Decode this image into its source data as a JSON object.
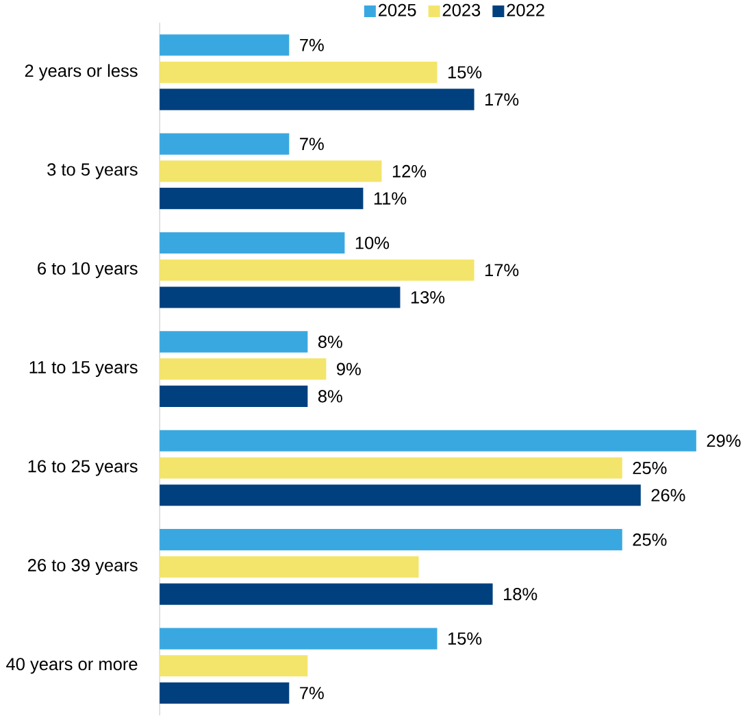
{
  "chart_data": {
    "type": "bar",
    "orientation": "horizontal",
    "legend": "top",
    "categories": [
      "2 years or less",
      "3 to 5 years",
      "6 to 10 years",
      "11 to 15 years",
      "16 to 25 years",
      "26 to 39 years",
      "40 years or more"
    ],
    "series": [
      {
        "name": "2025",
        "color": "#3aa8e0",
        "values": [
          7,
          7,
          10,
          8,
          29,
          25,
          15
        ],
        "value_labels": [
          "7%",
          "7%",
          "10%",
          "8%",
          "29%",
          "25%",
          "15%"
        ]
      },
      {
        "name": "2023",
        "color": "#f3e56b",
        "values": [
          15,
          12,
          17,
          9,
          25,
          14,
          8
        ],
        "value_labels": [
          "15%",
          "12%",
          "17%",
          "9%",
          "25%",
          null,
          null
        ]
      },
      {
        "name": "2022",
        "color": "#00407f",
        "values": [
          17,
          11,
          13,
          8,
          26,
          18,
          7
        ],
        "value_labels": [
          "17%",
          "11%",
          "13%",
          "8%",
          "26%",
          "18%",
          "7%"
        ]
      }
    ]
  }
}
